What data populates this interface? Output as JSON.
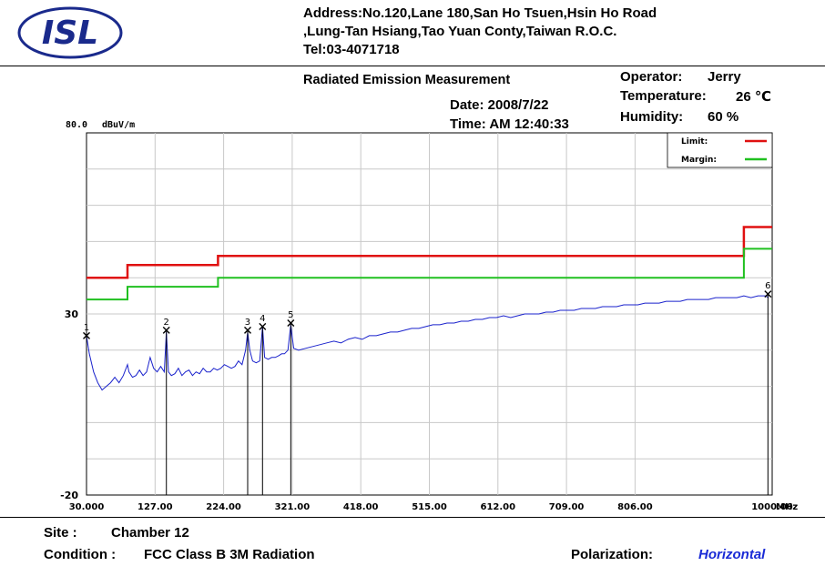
{
  "header": {
    "logo_text": "ISL",
    "address_line1": "Address:No.120,Lane 180,San Ho Tsuen,Hsin Ho Road",
    "address_line2": ",Lung-Tan Hsiang,Tao Yuan Conty,Taiwan R.O.C.",
    "address_line3": "Tel:03-4071718"
  },
  "measurement": {
    "title": "Radiated Emission Measurement",
    "date": "Date: 2008/7/22",
    "time": "Time: AM 12:40:33",
    "operator_label": "Operator:",
    "operator_value": "Jerry",
    "temperature_label": "Temperature:",
    "temperature_value": "26 ℃",
    "humidity_label": "Humidity:",
    "humidity_value": "60 %"
  },
  "footer": {
    "site_label": "Site :",
    "site_value": "Chamber 12",
    "condition_label": "Condition :",
    "condition_value": "FCC Class B 3M Radiation",
    "polarization_label": "Polarization:",
    "polarization_value": "Horizontal"
  },
  "colors": {
    "limit": "#e01010",
    "margin": "#20c020",
    "trace": "#1a22cc",
    "grid": "#c8c8c8"
  },
  "chart_data": {
    "type": "line",
    "ylabel_top": "80.0",
    "yunit": "dBuV/m",
    "xunit": "MHz",
    "xlim": [
      30,
      1000
    ],
    "ylim": [
      -20,
      80
    ],
    "xticks": [
      30,
      127,
      224,
      321,
      418,
      515,
      612,
      709,
      806,
      1000
    ],
    "xtick_labels": [
      "30.000",
      "127.00",
      "224.00",
      "321.00",
      "418.00",
      "515.00",
      "612.00",
      "709.00",
      "806.00",
      "1000.00"
    ],
    "yticks_labeled": [
      {
        "value": 30,
        "label": "30"
      },
      {
        "value": -20,
        "label": "-20"
      }
    ],
    "grid": true,
    "legend": {
      "placement": "top-right",
      "entries": [
        {
          "name": "Limit:",
          "color": "#e01010"
        },
        {
          "name": "Margin:",
          "color": "#20c020"
        }
      ]
    },
    "limit_steps": [
      [
        30,
        40.0
      ],
      [
        88,
        40.0
      ],
      [
        88,
        43.5
      ],
      [
        216,
        43.5
      ],
      [
        216,
        46.0
      ],
      [
        960,
        46.0
      ],
      [
        960,
        54.0
      ],
      [
        1000,
        54.0
      ]
    ],
    "margin_steps": [
      [
        30,
        34.0
      ],
      [
        88,
        34.0
      ],
      [
        88,
        37.5
      ],
      [
        216,
        37.5
      ],
      [
        216,
        40.0
      ],
      [
        960,
        40.0
      ],
      [
        960,
        48.0
      ],
      [
        1000,
        48.0
      ]
    ],
    "trace_points": [
      [
        30,
        24
      ],
      [
        34,
        19
      ],
      [
        40,
        14
      ],
      [
        46,
        11
      ],
      [
        52,
        9
      ],
      [
        58,
        10
      ],
      [
        64,
        11
      ],
      [
        70,
        12.5
      ],
      [
        76,
        11
      ],
      [
        82,
        13
      ],
      [
        88,
        16
      ],
      [
        90,
        14
      ],
      [
        95,
        12.5
      ],
      [
        100,
        13
      ],
      [
        105,
        14.5
      ],
      [
        110,
        13
      ],
      [
        115,
        14
      ],
      [
        120,
        18
      ],
      [
        125,
        15
      ],
      [
        130,
        14
      ],
      [
        135,
        15.5
      ],
      [
        140,
        14
      ],
      [
        143,
        25
      ],
      [
        146,
        14
      ],
      [
        150,
        13
      ],
      [
        155,
        13.5
      ],
      [
        160,
        15
      ],
      [
        165,
        13
      ],
      [
        170,
        14
      ],
      [
        175,
        14.5
      ],
      [
        180,
        13
      ],
      [
        185,
        14
      ],
      [
        190,
        13.5
      ],
      [
        195,
        15
      ],
      [
        200,
        14
      ],
      [
        205,
        14
      ],
      [
        210,
        15
      ],
      [
        215,
        14.5
      ],
      [
        220,
        15
      ],
      [
        225,
        16
      ],
      [
        230,
        15.5
      ],
      [
        235,
        15
      ],
      [
        240,
        15.5
      ],
      [
        245,
        17
      ],
      [
        250,
        16
      ],
      [
        255,
        20
      ],
      [
        258,
        25
      ],
      [
        261,
        20
      ],
      [
        265,
        17
      ],
      [
        270,
        16.5
      ],
      [
        275,
        17
      ],
      [
        279,
        26.5
      ],
      [
        282,
        18
      ],
      [
        287,
        17.5
      ],
      [
        292,
        18
      ],
      [
        297,
        18
      ],
      [
        302,
        18.5
      ],
      [
        306,
        19
      ],
      [
        310,
        19
      ],
      [
        315,
        20
      ],
      [
        319,
        27
      ],
      [
        323,
        20.5
      ],
      [
        330,
        20
      ],
      [
        340,
        20.5
      ],
      [
        350,
        21
      ],
      [
        360,
        21.5
      ],
      [
        370,
        22
      ],
      [
        380,
        22.5
      ],
      [
        390,
        22
      ],
      [
        400,
        23
      ],
      [
        410,
        23.5
      ],
      [
        420,
        23
      ],
      [
        430,
        24
      ],
      [
        440,
        24
      ],
      [
        450,
        24.5
      ],
      [
        460,
        25
      ],
      [
        470,
        25
      ],
      [
        480,
        25.5
      ],
      [
        490,
        26
      ],
      [
        500,
        26
      ],
      [
        510,
        26.5
      ],
      [
        520,
        27
      ],
      [
        530,
        27
      ],
      [
        540,
        27.5
      ],
      [
        550,
        27.5
      ],
      [
        560,
        28
      ],
      [
        570,
        28
      ],
      [
        580,
        28.5
      ],
      [
        590,
        28.5
      ],
      [
        600,
        29
      ],
      [
        610,
        29
      ],
      [
        620,
        29.5
      ],
      [
        630,
        29
      ],
      [
        640,
        29.5
      ],
      [
        650,
        30
      ],
      [
        660,
        30
      ],
      [
        670,
        30
      ],
      [
        680,
        30.5
      ],
      [
        690,
        30.5
      ],
      [
        700,
        31
      ],
      [
        710,
        31
      ],
      [
        720,
        31
      ],
      [
        730,
        31.5
      ],
      [
        740,
        31.5
      ],
      [
        750,
        31.5
      ],
      [
        760,
        32
      ],
      [
        770,
        32
      ],
      [
        780,
        32
      ],
      [
        790,
        32.5
      ],
      [
        800,
        32.5
      ],
      [
        810,
        32.5
      ],
      [
        820,
        33
      ],
      [
        830,
        33
      ],
      [
        840,
        33
      ],
      [
        850,
        33.5
      ],
      [
        860,
        33.5
      ],
      [
        870,
        33.5
      ],
      [
        880,
        34
      ],
      [
        890,
        34
      ],
      [
        900,
        34
      ],
      [
        910,
        34
      ],
      [
        920,
        34.5
      ],
      [
        930,
        34.5
      ],
      [
        940,
        34.5
      ],
      [
        950,
        34.5
      ],
      [
        960,
        35
      ],
      [
        970,
        34.5
      ],
      [
        980,
        35
      ],
      [
        990,
        35
      ],
      [
        995,
        34.5
      ]
    ],
    "markers": [
      {
        "label": "1",
        "x": 30.0,
        "y": 24.0
      },
      {
        "label": "2",
        "x": 143.0,
        "y": 25.5
      },
      {
        "label": "3",
        "x": 258.0,
        "y": 25.5
      },
      {
        "label": "4",
        "x": 279.0,
        "y": 26.5
      },
      {
        "label": "5",
        "x": 319.0,
        "y": 27.5
      },
      {
        "label": "6",
        "x": 994.0,
        "y": 35.5
      }
    ]
  }
}
